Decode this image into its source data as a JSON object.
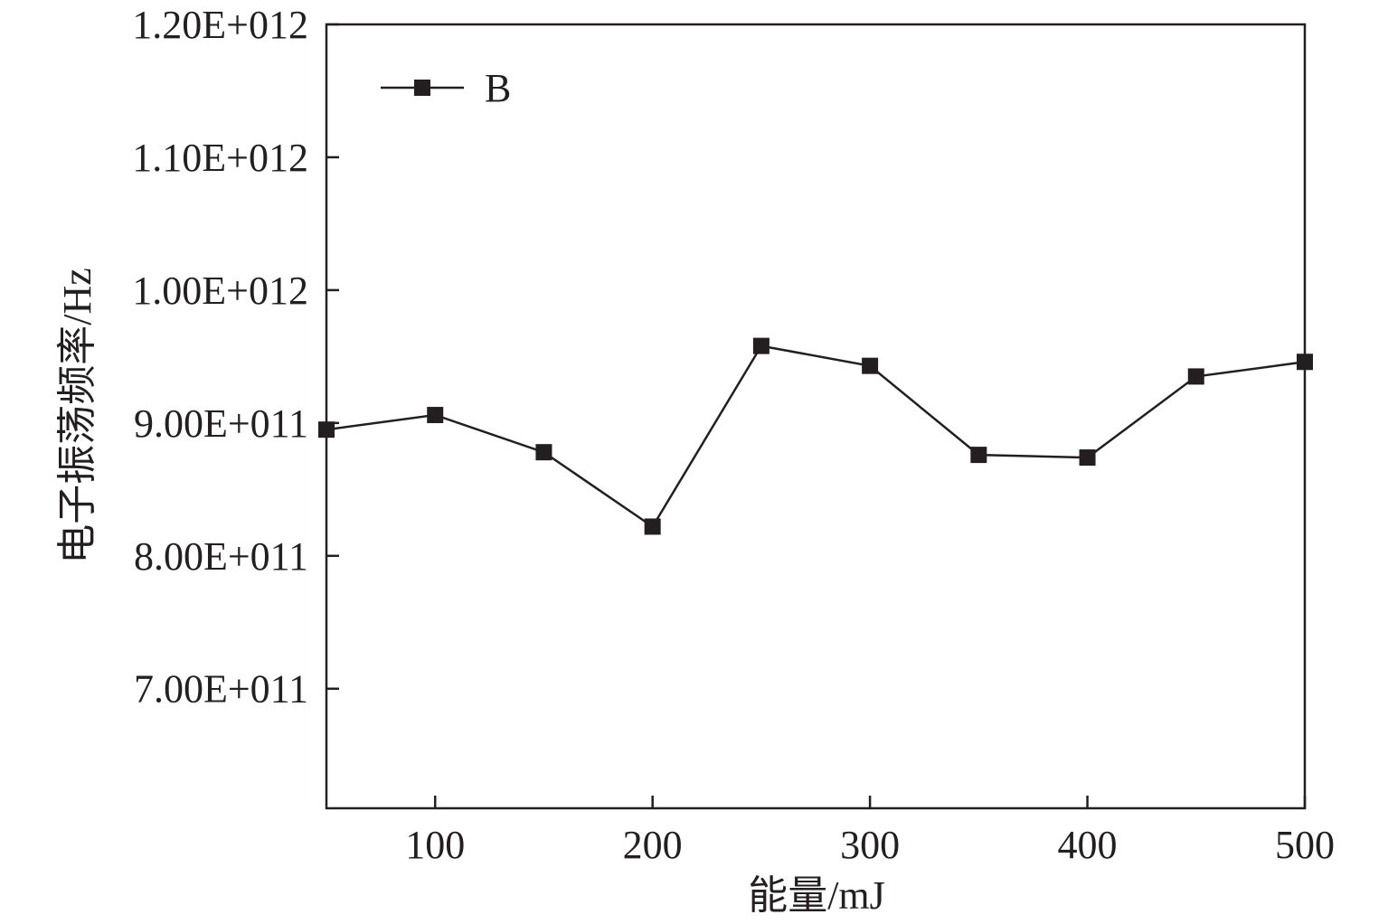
{
  "chart_data": {
    "type": "line",
    "title": "",
    "xlabel": "能量/mJ",
    "ylabel": "电子振荡频率/Hz",
    "xlim": [
      50,
      500
    ],
    "ylim": [
      610000000000,
      1200000000000
    ],
    "x_ticks": [
      100,
      200,
      300,
      400,
      500
    ],
    "x_tick_labels": [
      "100",
      "200",
      "300",
      "400",
      "500"
    ],
    "y_ticks": [
      700000000000,
      800000000000,
      900000000000,
      1000000000000,
      1100000000000,
      1200000000000
    ],
    "y_tick_labels": [
      "7.00E+011",
      "8.00E+011",
      "9.00E+011",
      "1.00E+012",
      "1.10E+012",
      "1.20E+012"
    ],
    "grid": false,
    "legend_position": "top-left",
    "series": [
      {
        "name": "B",
        "marker": "square",
        "color": "#231f20",
        "x": [
          50,
          100,
          150,
          200,
          250,
          300,
          350,
          400,
          450,
          500
        ],
        "y": [
          895000000000,
          906000000000,
          878000000000,
          822000000000,
          958000000000,
          943000000000,
          876000000000,
          874000000000,
          935000000000,
          946000000000
        ]
      }
    ]
  }
}
